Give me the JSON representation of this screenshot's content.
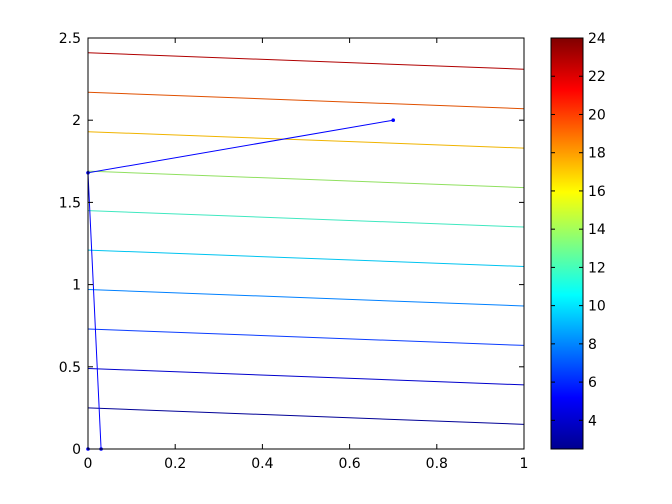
{
  "chart_data": {
    "type": "line",
    "title": "",
    "xlabel": "",
    "ylabel": "",
    "xlim": [
      0,
      1
    ],
    "ylim": [
      0,
      2.5
    ],
    "grid": false,
    "x_ticks": [
      "0",
      "0.2",
      "0.4",
      "0.6",
      "0.8",
      "1"
    ],
    "y_ticks": [
      "0",
      "0.5",
      "1",
      "1.5",
      "2",
      "2.5"
    ],
    "contour_lines": [
      {
        "level": 1,
        "color": "#000096",
        "x": [
          0,
          1
        ],
        "y": [
          0.25,
          0.15
        ]
      },
      {
        "level": 3,
        "color": "#0000cc",
        "x": [
          0,
          1
        ],
        "y": [
          0.49,
          0.39
        ]
      },
      {
        "level": 5,
        "color": "#0a3cff",
        "x": [
          0,
          1
        ],
        "y": [
          0.73,
          0.63
        ]
      },
      {
        "level": 7,
        "color": "#0080ff",
        "x": [
          0,
          1
        ],
        "y": [
          0.97,
          0.87
        ]
      },
      {
        "level": 9,
        "color": "#00c4f0",
        "x": [
          0,
          1
        ],
        "y": [
          1.21,
          1.11
        ]
      },
      {
        "level": 11,
        "color": "#40e8c0",
        "x": [
          0,
          1
        ],
        "y": [
          1.45,
          1.35
        ]
      },
      {
        "level": 13,
        "color": "#90e060",
        "x": [
          0,
          1
        ],
        "y": [
          1.69,
          1.59
        ]
      },
      {
        "level": 15,
        "color": "#f0b400",
        "x": [
          0,
          1
        ],
        "y": [
          1.93,
          1.83
        ]
      },
      {
        "level": 17,
        "color": "#e05000",
        "x": [
          0,
          1
        ],
        "y": [
          2.17,
          2.07
        ]
      },
      {
        "level": 19,
        "color": "#b00000",
        "x": [
          0,
          1
        ],
        "y": [
          2.41,
          2.31
        ]
      }
    ],
    "path": {
      "color": "#0000ff",
      "x": [
        0.7,
        0.0,
        0.03,
        0.0
      ],
      "y": [
        2.0,
        1.68,
        0.0,
        0.0
      ]
    },
    "colorbar": {
      "range": [
        2.5,
        24
      ],
      "ticks": [
        "4",
        "6",
        "8",
        "10",
        "12",
        "14",
        "16",
        "18",
        "20",
        "22",
        "24"
      ],
      "tick_values": [
        4,
        6,
        8,
        10,
        12,
        14,
        16,
        18,
        20,
        22,
        24
      ],
      "colormap": "jet"
    }
  }
}
